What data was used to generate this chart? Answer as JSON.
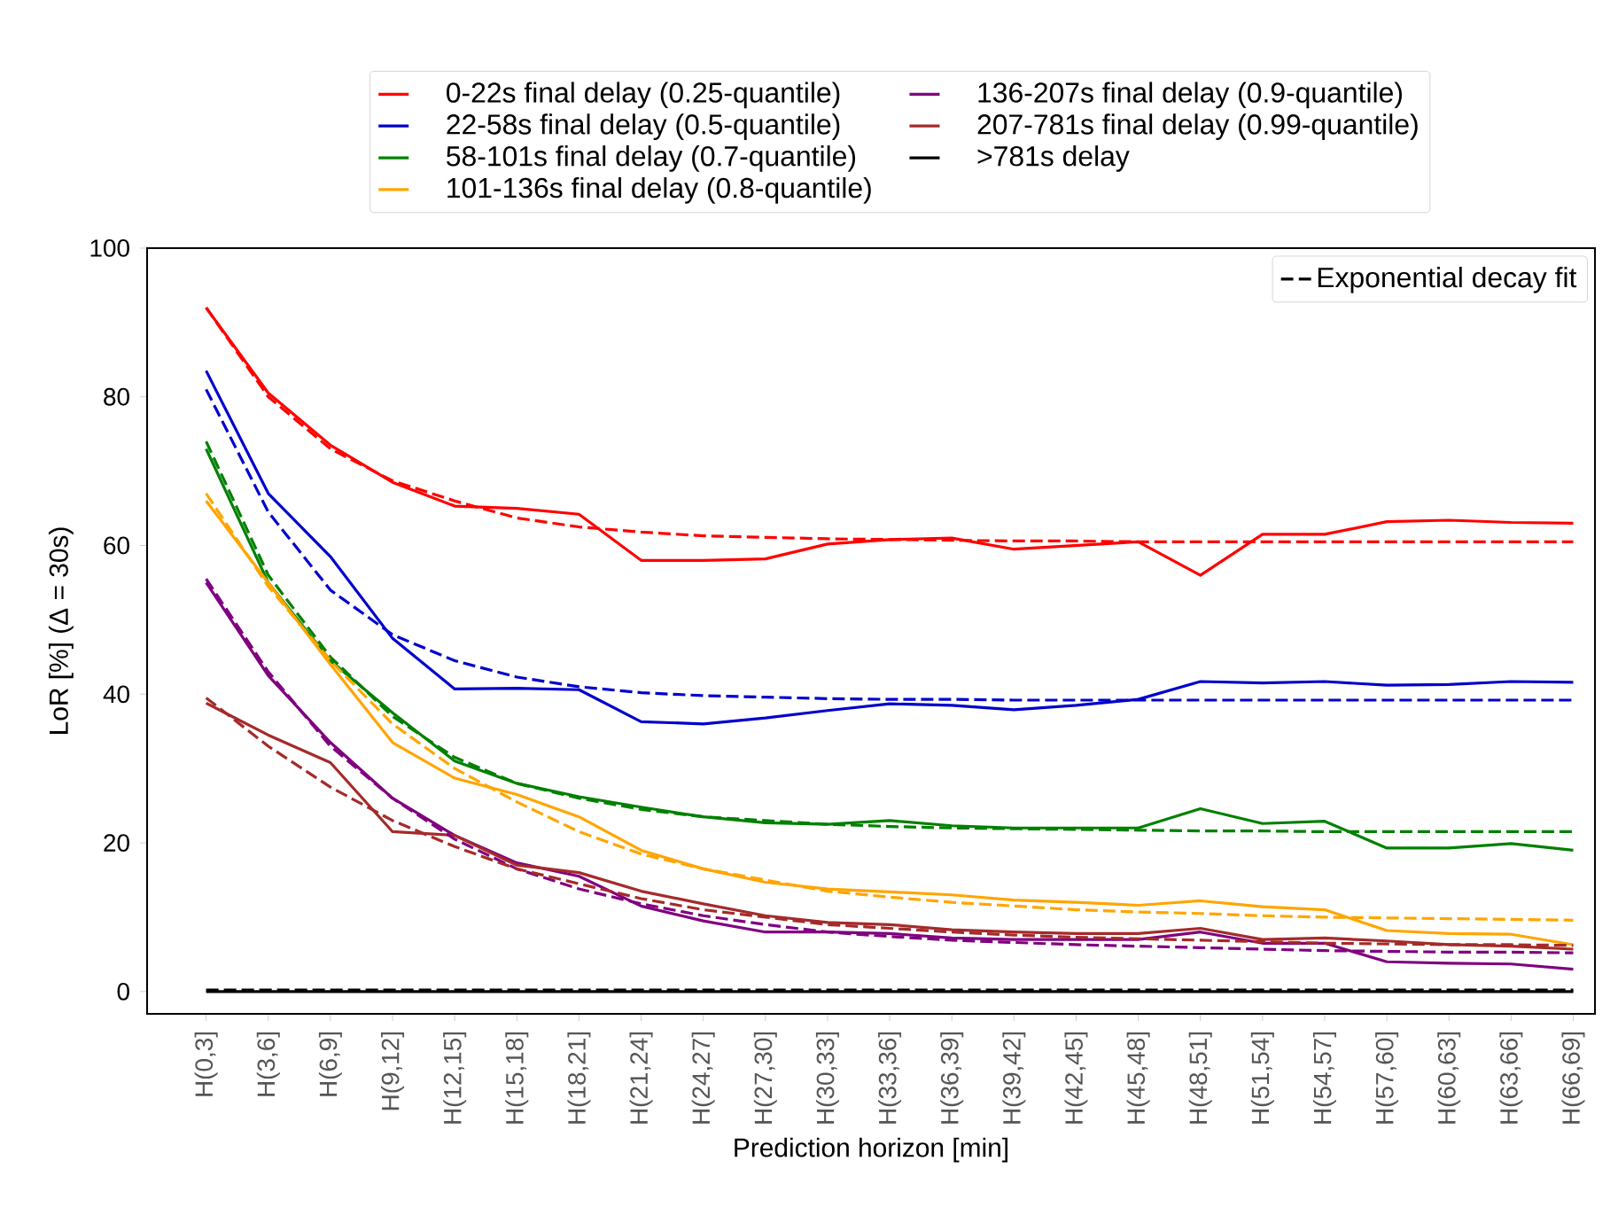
{
  "chart_data": {
    "type": "line",
    "xlabel": "Prediction horizon [min]",
    "ylabel": "LoR [%]  (Δ = 30s)",
    "categories": [
      "H(0,3]",
      "H(3,6]",
      "H(6,9]",
      "H(9,12]",
      "H(12,15]",
      "H(15,18]",
      "H(18,21]",
      "H(21,24]",
      "H(24,27]",
      "H(27,30]",
      "H(30,33]",
      "H(33,36]",
      "H(36,39]",
      "H(39,42]",
      "H(42,45]",
      "H(45,48]",
      "H(48,51]",
      "H(51,54]",
      "H(54,57]",
      "H(57,60]",
      "H(60,63]",
      "H(63,66]",
      "H(66,69]"
    ],
    "ylim": [
      -3,
      100
    ],
    "yticks": [
      0,
      20,
      40,
      60,
      80,
      100
    ],
    "legend": "top",
    "series": [
      {
        "name": "0-22s final delay (0.25-quantile)",
        "color": "#ff0000",
        "values": [
          92,
          80.5,
          73.5,
          68.5,
          65.3,
          65,
          64.2,
          58,
          58,
          58.2,
          60.2,
          60.8,
          61,
          59.5,
          60,
          60.5,
          56,
          61.5,
          61.5,
          63.2,
          63.4,
          63.1,
          63
        ]
      },
      {
        "name": "22-58s final delay (0.5-quantile)",
        "color": "#0000cc",
        "values": [
          83.5,
          67,
          58.5,
          47.5,
          40.7,
          40.8,
          40.6,
          36.3,
          36,
          36.8,
          37.8,
          38.7,
          38.5,
          37.9,
          38.5,
          39.3,
          41.7,
          41.5,
          41.7,
          41.2,
          41.3,
          41.7,
          41.6
        ]
      },
      {
        "name": "58-101s final delay (0.7-quantile)",
        "color": "#008000",
        "values": [
          73,
          55,
          44.5,
          37.5,
          31,
          28,
          26.2,
          24.8,
          23.5,
          22.7,
          22.5,
          23,
          22.3,
          22,
          22,
          22,
          24.6,
          22.6,
          22.9,
          19.3,
          19.3,
          19.9,
          19
        ]
      },
      {
        "name": "101-136s final delay (0.8-quantile)",
        "color": "#ffa500",
        "values": [
          66,
          55,
          44,
          33.5,
          28.7,
          26.5,
          23.5,
          19,
          16.5,
          14.7,
          13.8,
          13.4,
          13,
          12.3,
          12,
          11.6,
          12.2,
          11.4,
          11,
          8.2,
          7.8,
          7.7,
          6.3
        ]
      },
      {
        "name": "136-207s final delay (0.9-quantile)",
        "color": "#800080",
        "values": [
          55,
          42.5,
          33.5,
          26,
          21,
          17.3,
          15.5,
          11.5,
          9.5,
          8,
          8,
          7.8,
          7.2,
          7,
          7,
          7,
          8,
          6.5,
          6.5,
          4,
          3.8,
          3.7,
          3
        ]
      },
      {
        "name": "207-781s final delay (0.99-quantile)",
        "color": "#a52a2a",
        "values": [
          38.8,
          34.5,
          30.8,
          21.5,
          21,
          17,
          16,
          13.5,
          11.8,
          10.2,
          9.3,
          9,
          8.3,
          8,
          7.8,
          7.8,
          8.5,
          7,
          7.2,
          6.8,
          6.3,
          6.1,
          5.7
        ]
      },
      {
        "name": ">781s delay",
        "color": "#000000",
        "values": [
          0,
          0,
          0,
          0,
          0,
          0,
          0,
          0,
          0,
          0,
          0,
          0,
          0,
          0,
          0,
          0,
          0,
          0,
          0,
          0,
          0,
          0,
          0
        ]
      },
      {
        "color": "#ff0000",
        "line_style": "dashed",
        "values": [
          92,
          80,
          73,
          68.7,
          66,
          63.7,
          62.5,
          61.8,
          61.3,
          61.1,
          60.9,
          60.8,
          60.7,
          60.6,
          60.6,
          60.5,
          60.5,
          60.5,
          60.5,
          60.5,
          60.5,
          60.5,
          60.5
        ]
      },
      {
        "color": "#0000cc",
        "line_style": "dashed",
        "values": [
          81,
          64.5,
          54,
          48,
          44.5,
          42.3,
          41,
          40.2,
          39.8,
          39.6,
          39.4,
          39.3,
          39.3,
          39.2,
          39.2,
          39.2,
          39.2,
          39.2,
          39.2,
          39.2,
          39.2,
          39.2,
          39.2
        ]
      },
      {
        "color": "#008000",
        "line_style": "dashed",
        "values": [
          74,
          56,
          45,
          37,
          31.5,
          28,
          26,
          24.5,
          23.5,
          23,
          22.5,
          22.2,
          22,
          21.9,
          21.8,
          21.7,
          21.6,
          21.6,
          21.5,
          21.5,
          21.5,
          21.5,
          21.5
        ]
      },
      {
        "color": "#ffa500",
        "line_style": "dashed",
        "values": [
          67,
          54.5,
          44.5,
          36,
          30,
          25.5,
          21.5,
          18.5,
          16.5,
          15,
          13.5,
          12.7,
          12,
          11.5,
          11,
          10.7,
          10.5,
          10.2,
          10,
          9.9,
          9.8,
          9.7,
          9.6
        ]
      },
      {
        "color": "#800080",
        "line_style": "dashed",
        "values": [
          55.5,
          43,
          33,
          26,
          20.5,
          16.5,
          13.8,
          11.8,
          10.2,
          9,
          8,
          7.4,
          6.9,
          6.6,
          6.3,
          6.1,
          5.9,
          5.7,
          5.5,
          5.4,
          5.3,
          5.3,
          5.2
        ]
      },
      {
        "color": "#a52a2a",
        "line_style": "dashed",
        "values": [
          39.5,
          33,
          27.5,
          23,
          19.5,
          16.5,
          14.5,
          12.5,
          11,
          10,
          9,
          8.5,
          8,
          7.6,
          7.3,
          7.1,
          6.9,
          6.7,
          6.5,
          6.4,
          6.3,
          6.3,
          6.2
        ]
      },
      {
        "name": "Exponential decay fit",
        "color": "#000000",
        "line_style": "dashed",
        "values": [
          0.2,
          0.2,
          0.2,
          0.2,
          0.2,
          0.2,
          0.2,
          0.2,
          0.2,
          0.2,
          0.2,
          0.2,
          0.2,
          0.2,
          0.2,
          0.2,
          0.2,
          0.2,
          0.2,
          0.2,
          0.2,
          0.2,
          0.2
        ]
      }
    ]
  }
}
